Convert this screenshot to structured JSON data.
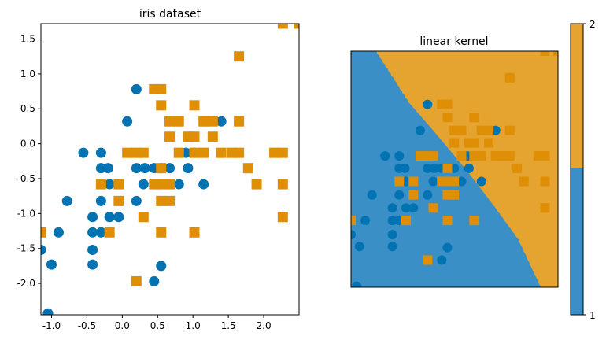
{
  "chart_data": [
    {
      "type": "scatter",
      "title": "iris dataset",
      "xlabel": "",
      "ylabel": "",
      "xlim": [
        -1.15,
        2.5
      ],
      "ylim": [
        -2.45,
        1.72
      ],
      "xticks": [
        "-1.0",
        "-0.5",
        "0.0",
        "0.5",
        "1.0",
        "1.5",
        "2.0"
      ],
      "xtick_values": [
        -1.0,
        -0.5,
        0.0,
        0.5,
        1.0,
        1.5,
        2.0
      ],
      "yticks": [
        "1.5",
        "1.0",
        "0.5",
        "0.0",
        "-0.5",
        "-1.0",
        "-1.5",
        "-2.0"
      ],
      "ytick_values": [
        1.5,
        1.0,
        0.5,
        0.0,
        -0.5,
        -1.0,
        -1.5,
        -2.0
      ],
      "series": [
        {
          "color": "#0173b2",
          "marker": "circle",
          "points": [
            [
              -1.15,
              -1.52
            ],
            [
              -1.05,
              -2.43
            ],
            [
              -1.0,
              -1.73
            ],
            [
              -0.9,
              -1.27
            ],
            [
              -0.78,
              -0.82
            ],
            [
              -0.55,
              -0.13
            ],
            [
              -0.42,
              -1.05
            ],
            [
              -0.42,
              -1.27
            ],
            [
              -0.42,
              -1.52
            ],
            [
              -0.42,
              -1.73
            ],
            [
              -0.3,
              -0.13
            ],
            [
              -0.3,
              -0.35
            ],
            [
              -0.3,
              -0.82
            ],
            [
              -0.3,
              -1.27
            ],
            [
              -0.2,
              -0.35
            ],
            [
              -0.18,
              -0.58
            ],
            [
              -0.18,
              -1.05
            ],
            [
              -0.05,
              -1.05
            ],
            [
              0.07,
              0.32
            ],
            [
              0.2,
              0.78
            ],
            [
              0.2,
              -0.35
            ],
            [
              0.2,
              -0.82
            ],
            [
              0.3,
              -0.58
            ],
            [
              0.32,
              -0.35
            ],
            [
              0.45,
              -0.35
            ],
            [
              0.45,
              -1.97
            ],
            [
              0.55,
              -1.75
            ],
            [
              0.55,
              -0.35
            ],
            [
              0.67,
              -0.35
            ],
            [
              0.8,
              -0.58
            ],
            [
              0.9,
              -0.13
            ],
            [
              0.93,
              -0.35
            ],
            [
              1.02,
              -0.13
            ],
            [
              1.15,
              -0.58
            ],
            [
              1.4,
              0.32
            ]
          ]
        },
        {
          "color": "#de8f05",
          "marker": "square",
          "points": [
            [
              -1.15,
              -1.27
            ],
            [
              -0.3,
              -0.58
            ],
            [
              -0.18,
              -1.27
            ],
            [
              -0.05,
              -0.58
            ],
            [
              -0.05,
              -0.82
            ],
            [
              0.07,
              -0.13
            ],
            [
              0.2,
              -0.13
            ],
            [
              0.2,
              -1.97
            ],
            [
              0.3,
              -0.13
            ],
            [
              0.3,
              -1.05
            ],
            [
              0.45,
              0.78
            ],
            [
              0.45,
              -0.58
            ],
            [
              0.55,
              0.78
            ],
            [
              0.55,
              0.55
            ],
            [
              0.55,
              -0.35
            ],
            [
              0.55,
              -0.58
            ],
            [
              0.55,
              -0.82
            ],
            [
              0.55,
              -1.27
            ],
            [
              0.67,
              0.32
            ],
            [
              0.67,
              0.1
            ],
            [
              0.67,
              -0.58
            ],
            [
              0.67,
              -0.82
            ],
            [
              0.8,
              0.32
            ],
            [
              0.8,
              -0.13
            ],
            [
              0.93,
              0.1
            ],
            [
              1.02,
              0.55
            ],
            [
              1.02,
              0.1
            ],
            [
              1.02,
              -0.13
            ],
            [
              1.02,
              -1.27
            ],
            [
              1.15,
              0.32
            ],
            [
              1.15,
              -0.13
            ],
            [
              1.28,
              0.32
            ],
            [
              1.28,
              0.1
            ],
            [
              1.4,
              -0.13
            ],
            [
              1.55,
              -0.13
            ],
            [
              1.65,
              1.25
            ],
            [
              1.65,
              0.32
            ],
            [
              1.65,
              -0.13
            ],
            [
              1.78,
              -0.35
            ],
            [
              1.9,
              -0.58
            ],
            [
              2.15,
              -0.13
            ],
            [
              2.27,
              1.72
            ],
            [
              2.27,
              -0.13
            ],
            [
              2.27,
              -0.58
            ],
            [
              2.27,
              -1.05
            ],
            [
              2.5,
              1.72
            ]
          ]
        }
      ]
    },
    {
      "type": "scatter",
      "title": "linear kernel",
      "xlim": [
        -1.15,
        2.5
      ],
      "ylim": [
        -2.45,
        1.72
      ],
      "xticks": [],
      "yticks": [],
      "decision_regions": {
        "boundary": [
          [
            -0.7,
            1.72
          ],
          [
            -0.4,
            1.25
          ],
          [
            -0.1,
            0.78
          ],
          [
            0.4,
            0.2
          ],
          [
            0.9,
            -0.4
          ],
          [
            1.4,
            -1.05
          ],
          [
            1.8,
            -1.6
          ],
          [
            2.2,
            -2.45
          ]
        ],
        "lower_left_color": "#3a8fc6",
        "upper_right_color": "#e5a330"
      }
    }
  ],
  "colorbar": {
    "ticks": [
      "1",
      "2"
    ],
    "colors": [
      "#3a8fc6",
      "#e5a330"
    ]
  }
}
